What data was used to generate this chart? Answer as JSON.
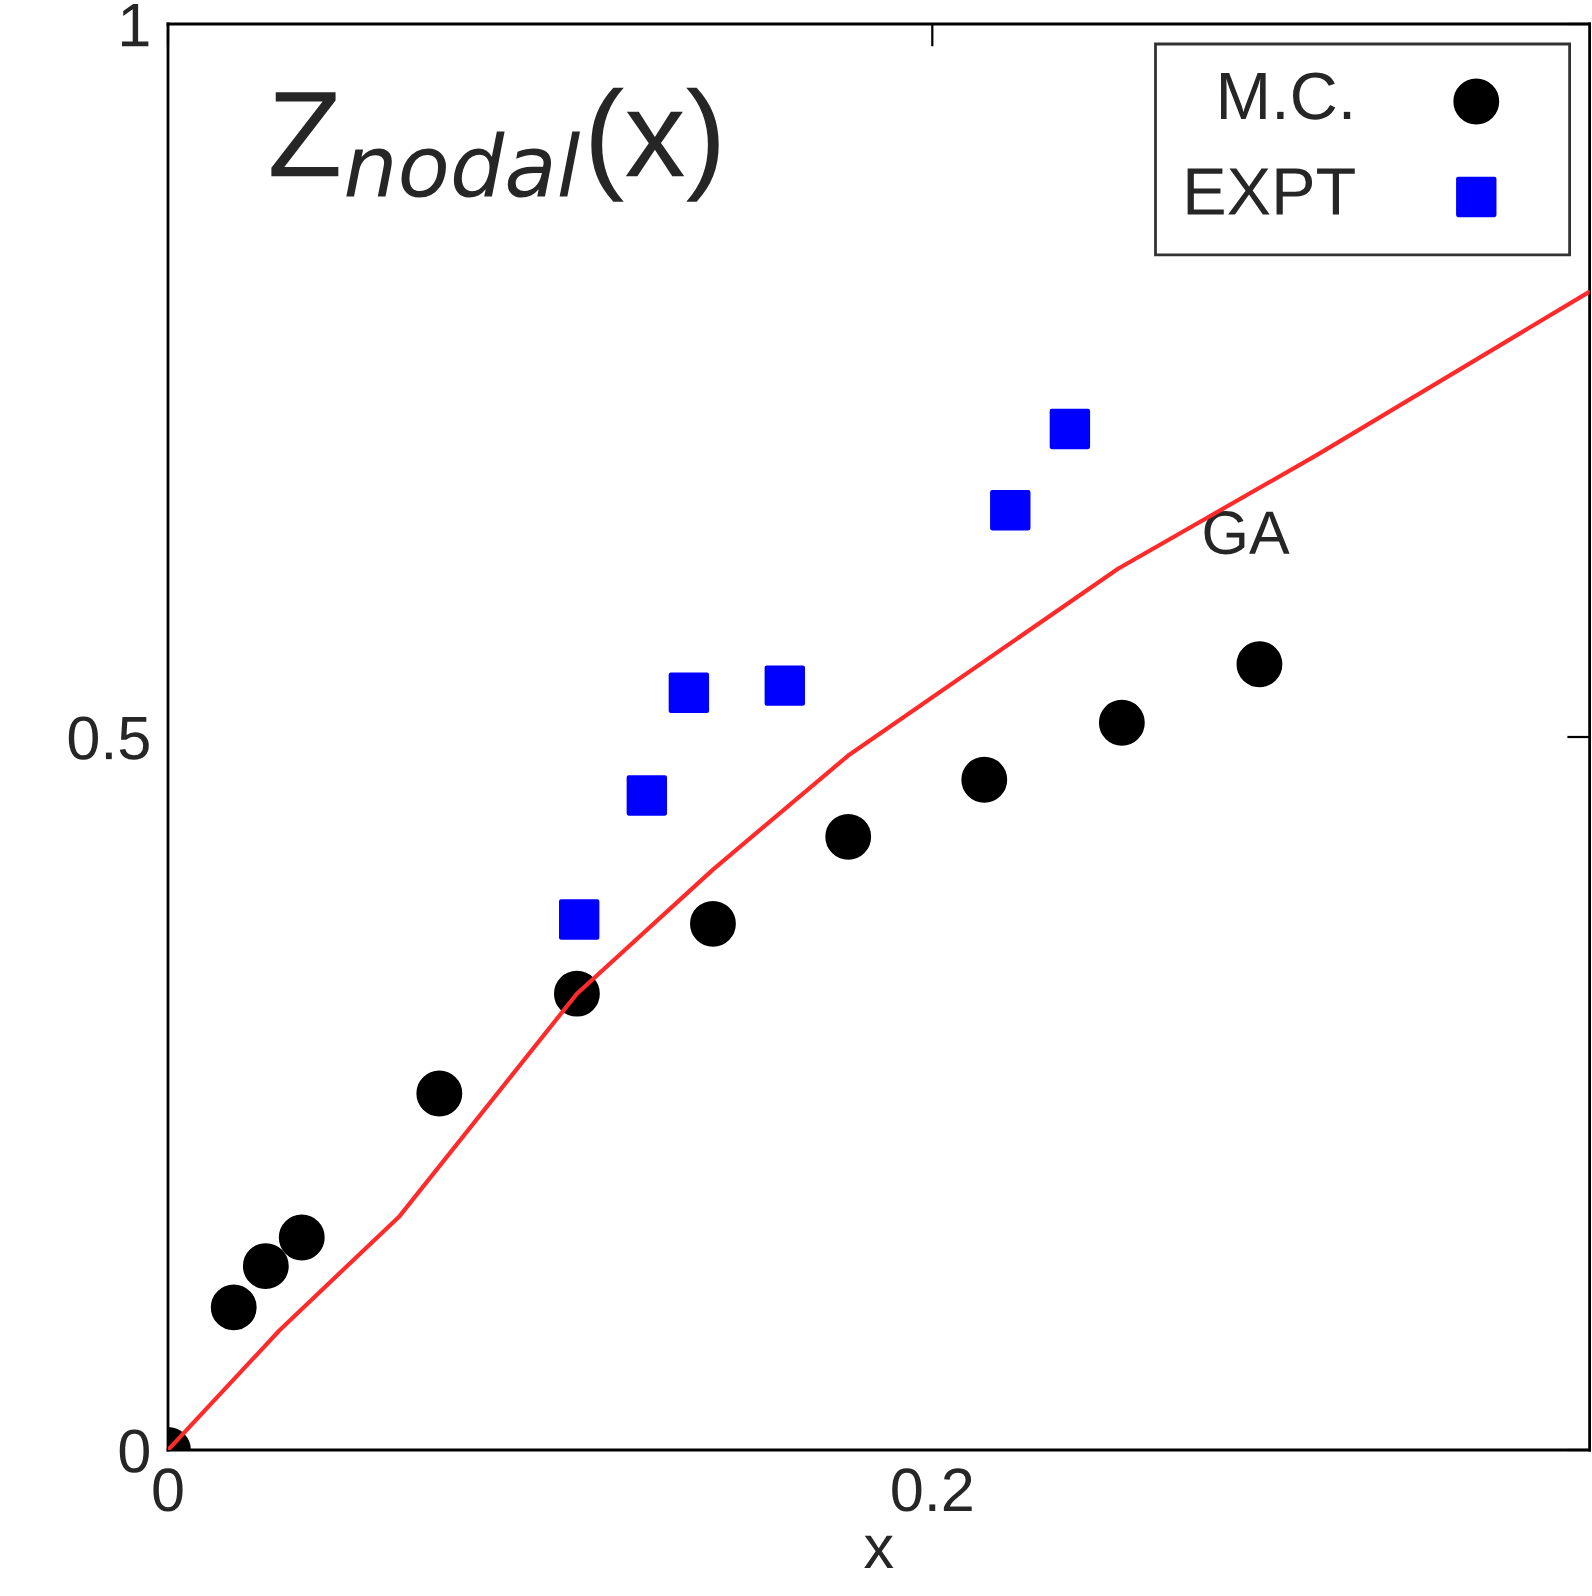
{
  "chart_data": {
    "type": "scatter",
    "title": "Z$_{nodal}$(x)",
    "xlabel": "x",
    "xlim": [
      0,
      0.372
    ],
    "ylim": [
      0,
      1
    ],
    "xticks": [
      0,
      0.2
    ],
    "yticks": [
      0,
      0.5,
      1
    ],
    "grid": false,
    "legend": "top right",
    "series": [
      {
        "name": "M.C.",
        "marker": "circle",
        "color": "#000000",
        "x": [
          0,
          0.0172,
          0.0256,
          0.035,
          0.071,
          0.107,
          0.1426,
          0.178,
          0.2136,
          0.2496,
          0.2856
        ],
        "values": [
          0,
          0.1,
          0.129,
          0.149,
          0.25,
          0.32,
          0.369,
          0.43,
          0.47,
          0.51,
          0.551
        ]
      },
      {
        "name": "EXPT",
        "marker": "square",
        "color": "#0000ff",
        "x": [
          0.1076,
          0.1253,
          0.1363,
          0.1614,
          0.2204,
          0.236
        ],
        "values": [
          0.372,
          0.459,
          0.531,
          0.536,
          0.659,
          0.716
        ]
      },
      {
        "name": "GA",
        "type": "line",
        "line_style": "solid",
        "color": "#ff2a2a",
        "x": [
          0,
          0.0292,
          0.0606,
          0.107,
          0.1426,
          0.178,
          0.2486,
          0.3008,
          0.3718
        ],
        "values": [
          0,
          0.084,
          0.164,
          0.32,
          0.407,
          0.487,
          0.618,
          0.698,
          0.812
        ]
      }
    ]
  }
}
